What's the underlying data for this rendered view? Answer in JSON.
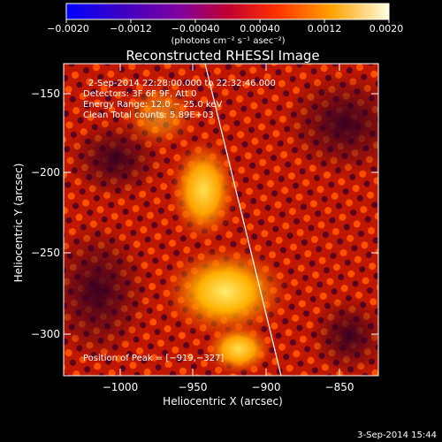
{
  "colorbar": {
    "ticks": [
      "−0.0020",
      "−0.0012",
      "−0.00040",
      "0.00040",
      "0.0012",
      "0.0020"
    ],
    "units": "(photons cm⁻² s⁻¹ asec⁻²)"
  },
  "plot": {
    "title": "Reconstructed RHESSI Image",
    "xlabel": "Heliocentric X (arcsec)",
    "ylabel": "Heliocentric Y (arcsec)",
    "xticks": [
      "−1000",
      "−950",
      "−900",
      "−850"
    ],
    "yticks": [
      "−150",
      "−200",
      "−250",
      "−300"
    ]
  },
  "annotations": {
    "time_range": "2-Sep-2014 22:28:00.000 to 22:32:46.000",
    "detectors": "Detectors: 3F 6F 9F, Att 0",
    "energy": "Energy Range: 12.0 − 25.0 keV",
    "method": "Clean     Total counts: 5.89E+03",
    "peak": "Position of Peak = [−919,−327]"
  },
  "footer": {
    "timestamp": "3-Sep-2014 15:44"
  }
}
